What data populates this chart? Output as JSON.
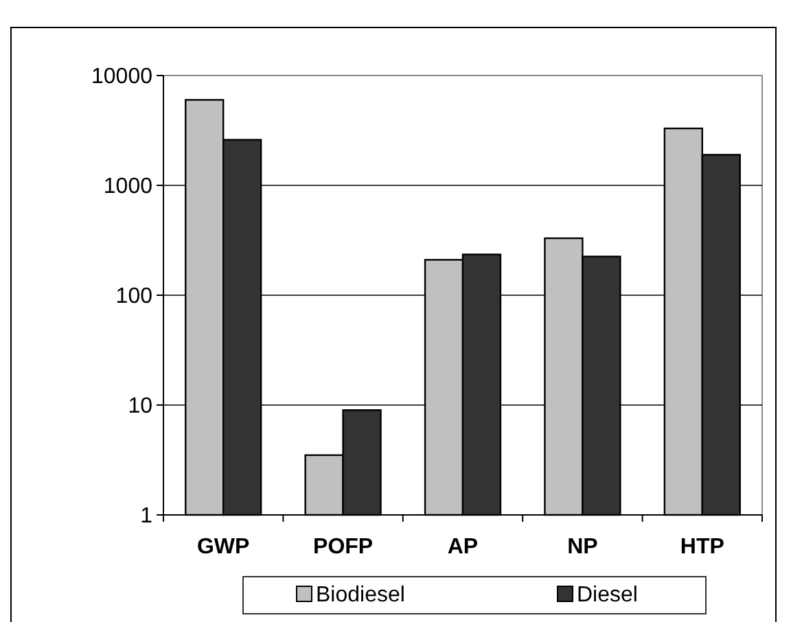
{
  "chart_data": {
    "type": "bar",
    "categories": [
      "GWP",
      "POFP",
      "AP",
      "NP",
      "HTP"
    ],
    "series": [
      {
        "name": "Biodiesel",
        "color": "#c0c0c0",
        "values": [
          6000,
          3.5,
          210,
          330,
          3300
        ]
      },
      {
        "name": "Diesel",
        "color": "#333333",
        "values": [
          2600,
          9,
          235,
          225,
          1900
        ]
      }
    ],
    "log": true,
    "ylim": [
      1,
      10000
    ],
    "yticks": [
      1,
      10,
      100,
      1000,
      10000
    ],
    "grid": "y",
    "legend": "bottom"
  }
}
